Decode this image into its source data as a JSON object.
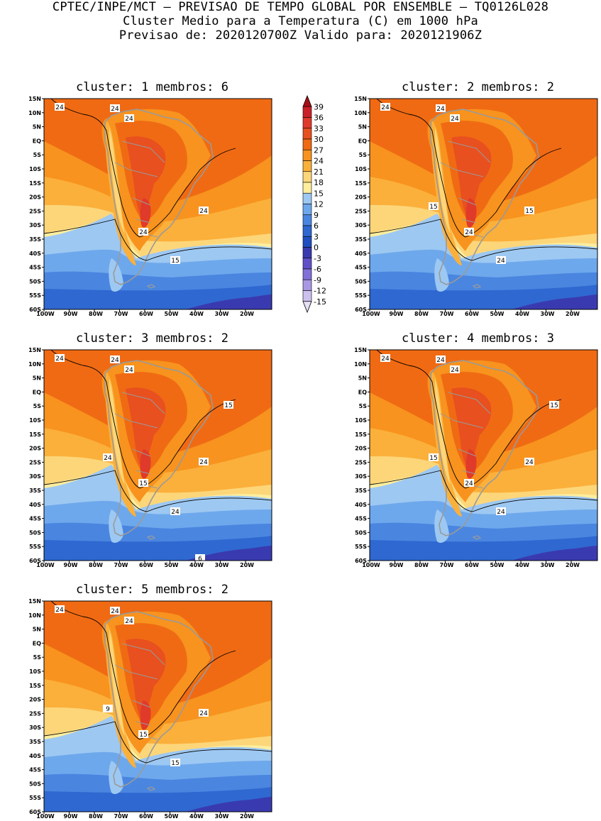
{
  "header": {
    "line1": "CPTEC/INPE/MCT – PREVISAO DE TEMPO GLOBAL POR ENSEMBLE – TQ0126L028",
    "line2": "Cluster Medio para a Temperatura (C) em 1000 hPa",
    "line3": "Previsao de: 2020120700Z   Valido para: 2020121906Z"
  },
  "panels": [
    {
      "title": "cluster: 1   membros: 6",
      "labels": [
        "24",
        "24",
        "24",
        "24",
        "24",
        "15"
      ]
    },
    {
      "title": "cluster: 2   membros: 2",
      "labels": [
        "24",
        "24",
        "24",
        "15",
        "24",
        "24",
        "15"
      ]
    },
    {
      "title": "cluster: 3   membros: 2",
      "labels": [
        "24",
        "24",
        "24",
        "24",
        "15",
        "24",
        "24",
        "15",
        "6"
      ]
    },
    {
      "title": "cluster: 4   membros: 3",
      "labels": [
        "24",
        "24",
        "24",
        "24",
        "24",
        "24",
        "15",
        "15"
      ]
    },
    {
      "title": "cluster: 5   membros: 2",
      "labels": [
        "24",
        "24",
        "24",
        "24",
        "15",
        "15",
        "9"
      ]
    }
  ],
  "axes": {
    "lat_ticks": [
      "15N",
      "10N",
      "5N",
      "EQ",
      "5S",
      "10S",
      "15S",
      "20S",
      "25S",
      "30S",
      "35S",
      "40S",
      "45S",
      "50S",
      "55S",
      "60S"
    ],
    "lon_ticks": [
      "100W",
      "90W",
      "80W",
      "70W",
      "60W",
      "50W",
      "40W",
      "30W",
      "20W"
    ]
  },
  "colorbar": {
    "labels": [
      "39",
      "36",
      "33",
      "30",
      "27",
      "24",
      "21",
      "18",
      "15",
      "12",
      "9",
      "6",
      "3",
      "0",
      "-3",
      "-6",
      "-9",
      "-12",
      "-15"
    ],
    "colors": [
      "#a50f15",
      "#cb2027",
      "#e03a2a",
      "#e8501f",
      "#f06a13",
      "#f7931e",
      "#fbb03b",
      "#fdd67a",
      "#feee9e",
      "#9dc8f2",
      "#6ea8ec",
      "#4a86e0",
      "#2f68d0",
      "#1f4fc0",
      "#3a3ab0",
      "#6050c8",
      "#8070d8",
      "#a898e4",
      "#cbc0ee",
      "#e6e0f6"
    ]
  },
  "colors": {
    "land_outline": "#9a9a9a",
    "contour": "#000000"
  }
}
